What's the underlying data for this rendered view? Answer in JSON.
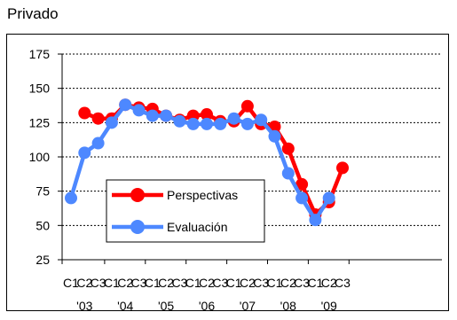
{
  "chart_data": {
    "type": "line",
    "title": "Privado",
    "xlabel": "",
    "ylabel": "",
    "ylim": [
      25,
      175
    ],
    "yticks": [
      25,
      50,
      75,
      100,
      125,
      150,
      175
    ],
    "grid": true,
    "legend_position": "center-left",
    "quarter_labels": [
      "C1",
      "C2",
      "C3",
      "C1",
      "C2",
      "C3",
      "C1",
      "C2",
      "C3",
      "C1",
      "C2",
      "C3",
      "C1",
      "C2",
      "C3",
      "C1",
      "C2",
      "C3",
      "C1",
      "C2",
      "C3"
    ],
    "year_labels": [
      "'03",
      "'04",
      "'05",
      "'06",
      "'07",
      "'08",
      "'09"
    ],
    "series": [
      {
        "name": "Perspectivas",
        "color": "#ff0000",
        "values": [
          null,
          132,
          128,
          128,
          138,
          136,
          135,
          130,
          127,
          130,
          131,
          126,
          126,
          137,
          124,
          122,
          106,
          80,
          58,
          67,
          92
        ]
      },
      {
        "name": "Evaluación",
        "color": "#4d88ff",
        "values": [
          70,
          103,
          110,
          125,
          138,
          134,
          130,
          130,
          126,
          124,
          124,
          124,
          128,
          124,
          127,
          115,
          88,
          70,
          54,
          70,
          null
        ]
      }
    ]
  }
}
